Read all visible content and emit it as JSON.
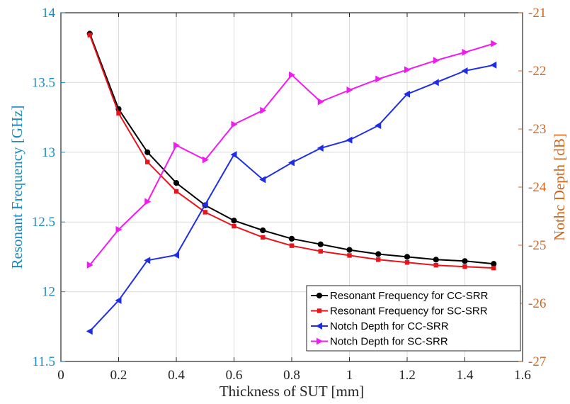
{
  "chart_data": {
    "type": "line",
    "xlabel": "Thickness of SUT [mm]",
    "ylabel_left": "Resonant Frequency [GHz]",
    "ylabel_right": "Nothc Depth [dB]",
    "xlim": [
      0,
      1.6
    ],
    "ylim_left": [
      11.5,
      14
    ],
    "ylim_right": [
      -27,
      -21
    ],
    "x_ticks": [
      "0",
      "0.2",
      "0.4",
      "0.6",
      "0.8",
      "1",
      "1.2",
      "1.4",
      "1.6"
    ],
    "y_left_ticks": [
      "11.5",
      "12",
      "12.5",
      "13",
      "13.5",
      "14"
    ],
    "y_right_ticks": [
      "-27",
      "-26",
      "-25",
      "-24",
      "-23",
      "-22",
      "-21"
    ],
    "grid": true,
    "legend_position": "bottom-right",
    "colors": {
      "left_axis": "#1a8ac4",
      "right_axis": "#d2651e"
    },
    "series": [
      {
        "name": "Resonant Frequency for CC-SRR",
        "axis": "left",
        "color": "#000000",
        "marker": "circle",
        "x": [
          0.1,
          0.2,
          0.3,
          0.4,
          0.5,
          0.6,
          0.7,
          0.8,
          0.9,
          1.0,
          1.1,
          1.2,
          1.3,
          1.4,
          1.5
        ],
        "values": [
          13.85,
          13.31,
          13.0,
          12.78,
          12.62,
          12.51,
          12.44,
          12.38,
          12.34,
          12.3,
          12.27,
          12.25,
          12.23,
          12.22,
          12.2
        ]
      },
      {
        "name": "Resonant Frequency for SC-SRR",
        "axis": "left",
        "color": "#e8141c",
        "marker": "square",
        "x": [
          0.1,
          0.2,
          0.3,
          0.4,
          0.5,
          0.6,
          0.7,
          0.8,
          0.9,
          1.0,
          1.1,
          1.2,
          1.3,
          1.4,
          1.5
        ],
        "values": [
          13.84,
          13.28,
          12.93,
          12.72,
          12.57,
          12.47,
          12.39,
          12.33,
          12.29,
          12.26,
          12.23,
          12.21,
          12.19,
          12.18,
          12.17
        ]
      },
      {
        "name": "Notch Depth for CC-SRR",
        "axis": "right",
        "color": "#1f2ee6",
        "marker": "triangle-left",
        "x": [
          0.1,
          0.2,
          0.3,
          0.4,
          0.5,
          0.6,
          0.7,
          0.8,
          0.9,
          1.0,
          1.1,
          1.2,
          1.3,
          1.4,
          1.5
        ],
        "values": [
          -26.48,
          -25.95,
          -25.26,
          -25.17,
          -24.3,
          -23.44,
          -23.87,
          -23.58,
          -23.33,
          -23.19,
          -22.94,
          -22.4,
          -22.2,
          -22.0,
          -21.9
        ]
      },
      {
        "name": "Notch Depth for SC-SRR",
        "axis": "right",
        "color": "#f21af2",
        "marker": "triangle-right",
        "x": [
          0.1,
          0.2,
          0.3,
          0.4,
          0.5,
          0.6,
          0.7,
          0.8,
          0.9,
          1.0,
          1.1,
          1.2,
          1.3,
          1.4,
          1.5
        ],
        "values": [
          -25.34,
          -24.73,
          -24.25,
          -23.28,
          -23.53,
          -22.92,
          -22.68,
          -22.07,
          -22.53,
          -22.33,
          -22.14,
          -21.98,
          -21.82,
          -21.68,
          -21.53
        ]
      }
    ]
  }
}
